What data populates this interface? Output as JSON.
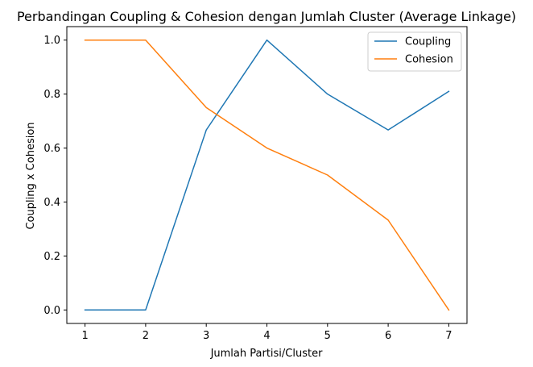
{
  "chart_data": {
    "type": "line",
    "title": "Perbandingan Coupling & Cohesion dengan Jumlah Cluster (Average Linkage)",
    "xlabel": "Jumlah Partisi/Cluster",
    "ylabel": "Coupling x Cohesion",
    "x": [
      1,
      2,
      3,
      4,
      5,
      6,
      7
    ],
    "xticks": [
      "1",
      "2",
      "3",
      "4",
      "5",
      "6",
      "7"
    ],
    "yticks": [
      "0.0",
      "0.2",
      "0.4",
      "0.6",
      "0.8",
      "1.0"
    ],
    "xlim": [
      0.7,
      7.3
    ],
    "ylim": [
      -0.05,
      1.05
    ],
    "grid": false,
    "legend_position": "top-right",
    "series": [
      {
        "name": "Coupling",
        "color": "#1f77b4",
        "values": [
          0.0,
          0.0,
          0.667,
          1.0,
          0.8,
          0.667,
          0.81
        ]
      },
      {
        "name": "Cohesion",
        "color": "#ff7f0e",
        "values": [
          1.0,
          1.0,
          0.75,
          0.6,
          0.5,
          0.333,
          0.0
        ]
      }
    ]
  }
}
